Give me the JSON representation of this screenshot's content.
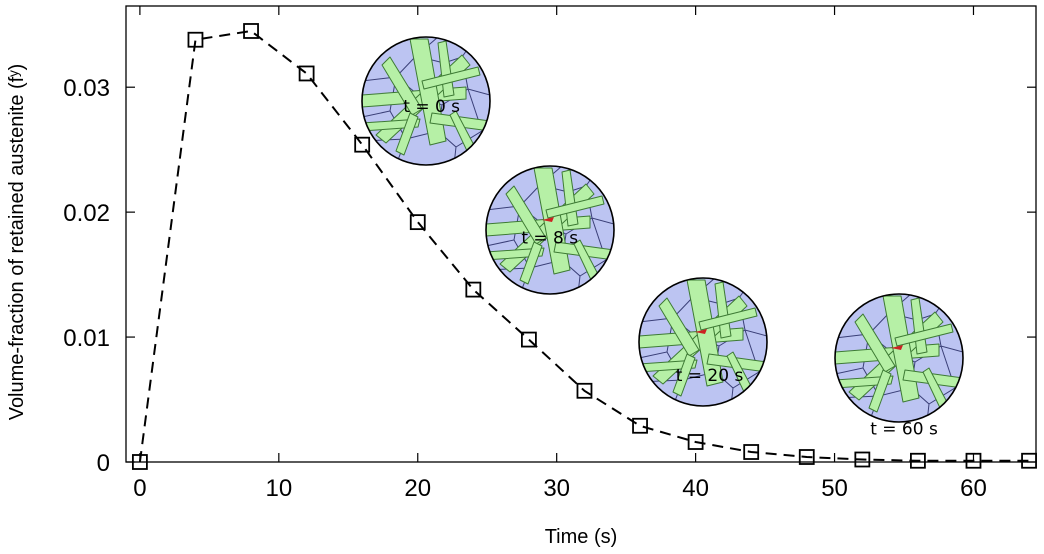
{
  "chart_data": {
    "type": "line",
    "title": "",
    "xlabel": "Time (s)",
    "ylabel": "Volume-fraction of retained austenite (fʸ)",
    "xlim": [
      -1,
      64.5
    ],
    "ylim": [
      0,
      0.0365
    ],
    "xticks": [
      0,
      10,
      20,
      30,
      40,
      50,
      60
    ],
    "xtick_labels": [
      "0",
      "10",
      "20",
      "30",
      "40",
      "50",
      "60"
    ],
    "yticks": [
      0,
      0.01,
      0.02,
      0.03
    ],
    "ytick_labels": [
      "0",
      "0.01",
      "0.02",
      "0.03"
    ],
    "grid": false,
    "legend": "none",
    "series": [
      {
        "style": "dashed-line-square-markers",
        "color": "#000000",
        "x": [
          0,
          4,
          8,
          12,
          16,
          20,
          24,
          28,
          32,
          36,
          40,
          44,
          48,
          52,
          56,
          60,
          64
        ],
        "y": [
          0,
          0.0338,
          0.0345,
          0.0311,
          0.0254,
          0.0192,
          0.0138,
          0.0098,
          0.0057,
          0.0029,
          0.0016,
          0.0008,
          0.0004,
          0.0002,
          0.0001,
          0.0001,
          0.0001
        ]
      }
    ],
    "annotations": [
      {
        "text": "t = 0 s",
        "x": 21,
        "y": 0.028
      },
      {
        "text": "t = 8 s",
        "x": 29.5,
        "y": 0.0175
      },
      {
        "text": "t = 20 s",
        "x": 41,
        "y": 0.0065
      },
      {
        "text": "t = 60 s",
        "x": 55,
        "y": 0.0022
      }
    ],
    "colors": {
      "grain": "#bcc4f2",
      "martensite": "#b6f0a6",
      "boundary": "#3a3f77",
      "martensite_edge": "#3d7a34",
      "austenite": "#cc2222"
    }
  }
}
